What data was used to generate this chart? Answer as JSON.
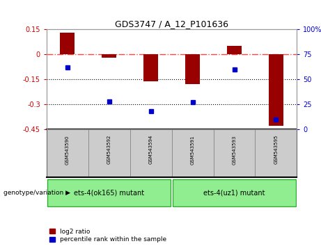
{
  "title": "GDS3747 / A_12_P101636",
  "samples": [
    "GSM543590",
    "GSM543592",
    "GSM543594",
    "GSM543591",
    "GSM543593",
    "GSM543595"
  ],
  "log2_ratio": [
    0.13,
    -0.02,
    -0.16,
    -0.18,
    0.05,
    -0.43
  ],
  "percentile_rank": [
    62,
    28,
    18,
    27,
    60,
    10
  ],
  "ylim_left": [
    -0.45,
    0.15
  ],
  "ylim_right": [
    0,
    100
  ],
  "yticks_left": [
    0.15,
    0.0,
    -0.15,
    -0.3,
    -0.45
  ],
  "yticks_right": [
    100,
    75,
    50,
    25,
    0
  ],
  "groups": [
    {
      "label": "ets-4(ok165) mutant",
      "indices": [
        0,
        1,
        2
      ],
      "color": "#90EE90"
    },
    {
      "label": "ets-4(uz1) mutant",
      "indices": [
        3,
        4,
        5
      ],
      "color": "#90EE90"
    }
  ],
  "bar_color": "#990000",
  "dot_color": "#0000CC",
  "hline_color": "#FF4444",
  "dotline_color": "#000000",
  "bg_color": "#FFFFFF",
  "plot_bg": "#FFFFFF",
  "left_tick_color": "#CC0000",
  "right_tick_color": "#0000CC",
  "legend_log2_label": "log2 ratio",
  "legend_pct_label": "percentile rank within the sample",
  "genotype_label": "genotype/variation",
  "bar_width": 0.35,
  "tick_fontsize": 7,
  "label_fontsize": 6,
  "group_fontsize": 7,
  "title_fontsize": 9
}
